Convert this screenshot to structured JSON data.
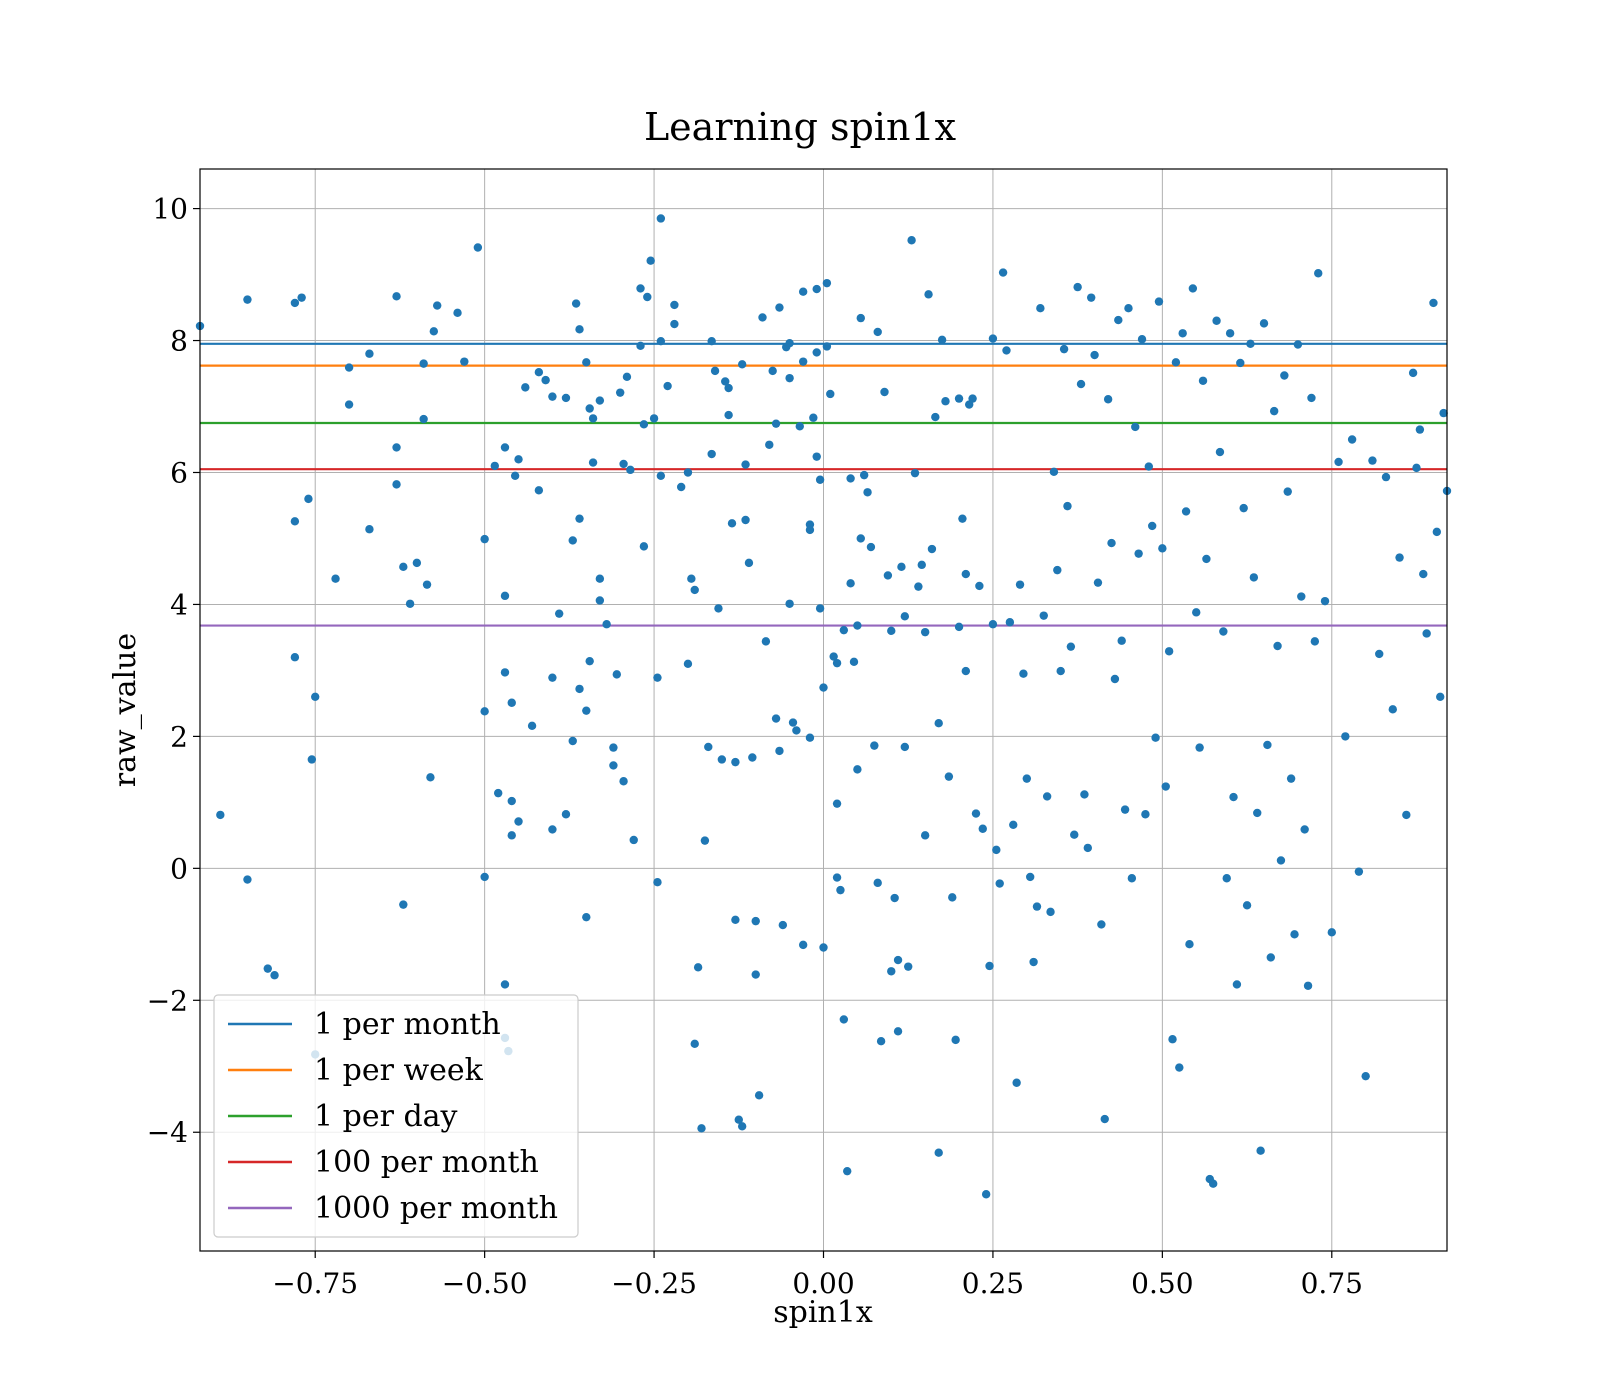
{
  "chart_data": {
    "type": "scatter",
    "title": "Learning spin1x",
    "xlabel": "spin1x",
    "ylabel": "raw_value",
    "xlim": [
      -0.92,
      0.92
    ],
    "ylim": [
      -5.8,
      10.6
    ],
    "xticks": [
      -0.75,
      -0.5,
      -0.25,
      0.0,
      0.25,
      0.5,
      0.75
    ],
    "xtick_labels": [
      "−0.75",
      "−0.50",
      "−0.25",
      "0.00",
      "0.25",
      "0.50",
      "0.75"
    ],
    "yticks": [
      -4,
      -2,
      0,
      2,
      4,
      6,
      8,
      10
    ],
    "ytick_labels": [
      "−4",
      "−2",
      "0",
      "2",
      "4",
      "6",
      "8",
      "10"
    ],
    "grid": true,
    "legend_position": "lower-left",
    "points_color": "#1f77b4",
    "hlines": [
      {
        "name": "1 per month",
        "y": 7.95,
        "color": "#1f77b4"
      },
      {
        "name": "1 per week",
        "y": 7.62,
        "color": "#ff7f0e"
      },
      {
        "name": "1 per day",
        "y": 6.75,
        "color": "#2ca02c"
      },
      {
        "name": "100 per month",
        "y": 6.05,
        "color": "#d62728"
      },
      {
        "name": "1000 per month",
        "y": 3.68,
        "color": "#9467bd"
      }
    ],
    "points": [
      [
        -0.92,
        8.22
      ],
      [
        -0.89,
        0.81
      ],
      [
        -0.85,
        8.62
      ],
      [
        -0.85,
        -0.17
      ],
      [
        -0.82,
        -1.52
      ],
      [
        -0.81,
        -1.62
      ],
      [
        -0.78,
        8.57
      ],
      [
        -0.77,
        8.65
      ],
      [
        -0.78,
        5.26
      ],
      [
        -0.78,
        3.2
      ],
      [
        -0.76,
        5.6
      ],
      [
        -0.75,
        2.6
      ],
      [
        -0.755,
        1.65
      ],
      [
        -0.75,
        -2.82
      ],
      [
        -0.72,
        4.39
      ],
      [
        -0.7,
        7.59
      ],
      [
        -0.7,
        7.03
      ],
      [
        -0.67,
        7.8
      ],
      [
        -0.67,
        5.14
      ],
      [
        -0.63,
        8.67
      ],
      [
        -0.63,
        6.38
      ],
      [
        -0.63,
        5.82
      ],
      [
        -0.62,
        4.57
      ],
      [
        -0.62,
        -0.55
      ],
      [
        -0.6,
        4.63
      ],
      [
        -0.61,
        4.01
      ],
      [
        -0.59,
        6.81
      ],
      [
        -0.59,
        7.65
      ],
      [
        -0.585,
        4.3
      ],
      [
        -0.58,
        1.38
      ],
      [
        -0.575,
        8.14
      ],
      [
        -0.57,
        8.53
      ],
      [
        -0.54,
        8.42
      ],
      [
        -0.53,
        7.68
      ],
      [
        -0.51,
        9.41
      ],
      [
        -0.5,
        4.99
      ],
      [
        -0.5,
        2.38
      ],
      [
        -0.5,
        -0.13
      ],
      [
        -0.485,
        6.1
      ],
      [
        -0.48,
        1.14
      ],
      [
        -0.47,
        6.38
      ],
      [
        -0.47,
        4.13
      ],
      [
        -0.47,
        2.97
      ],
      [
        -0.47,
        -1.76
      ],
      [
        -0.47,
        -2.57
      ],
      [
        -0.465,
        -2.77
      ],
      [
        -0.46,
        2.51
      ],
      [
        -0.46,
        1.02
      ],
      [
        -0.45,
        6.2
      ],
      [
        -0.455,
        5.95
      ],
      [
        -0.45,
        0.71
      ],
      [
        -0.46,
        0.5
      ],
      [
        -0.44,
        7.29
      ],
      [
        -0.43,
        2.16
      ],
      [
        -0.42,
        5.73
      ],
      [
        -0.42,
        7.52
      ],
      [
        -0.41,
        7.4
      ],
      [
        -0.4,
        7.15
      ],
      [
        -0.4,
        2.89
      ],
      [
        -0.4,
        0.59
      ],
      [
        -0.39,
        3.86
      ],
      [
        -0.38,
        0.82
      ],
      [
        -0.37,
        4.97
      ],
      [
        -0.38,
        7.13
      ],
      [
        -0.37,
        1.93
      ],
      [
        -0.365,
        8.56
      ],
      [
        -0.36,
        8.17
      ],
      [
        -0.36,
        5.3
      ],
      [
        -0.36,
        2.72
      ],
      [
        -0.35,
        7.67
      ],
      [
        -0.35,
        2.39
      ],
      [
        -0.35,
        -0.74
      ],
      [
        -0.345,
        6.97
      ],
      [
        -0.34,
        6.82
      ],
      [
        -0.345,
        3.14
      ],
      [
        -0.34,
        6.15
      ],
      [
        -0.33,
        7.09
      ],
      [
        -0.33,
        4.39
      ],
      [
        -0.33,
        4.06
      ],
      [
        -0.32,
        3.7
      ],
      [
        -0.31,
        1.83
      ],
      [
        -0.305,
        2.94
      ],
      [
        -0.31,
        1.56
      ],
      [
        -0.3,
        7.21
      ],
      [
        -0.295,
        6.13
      ],
      [
        -0.295,
        1.32
      ],
      [
        -0.29,
        7.45
      ],
      [
        -0.285,
        6.04
      ],
      [
        -0.28,
        0.43
      ],
      [
        -0.27,
        8.79
      ],
      [
        -0.27,
        7.92
      ],
      [
        -0.265,
        6.73
      ],
      [
        -0.265,
        4.88
      ],
      [
        -0.26,
        8.66
      ],
      [
        -0.255,
        9.21
      ],
      [
        -0.25,
        6.82
      ],
      [
        -0.245,
        2.89
      ],
      [
        -0.245,
        -0.21
      ],
      [
        -0.24,
        9.85
      ],
      [
        -0.24,
        7.99
      ],
      [
        -0.24,
        5.95
      ],
      [
        -0.23,
        7.31
      ],
      [
        -0.22,
        8.54
      ],
      [
        -0.22,
        8.25
      ],
      [
        -0.21,
        5.78
      ],
      [
        -0.2,
        6.0
      ],
      [
        -0.2,
        3.1
      ],
      [
        -0.195,
        4.39
      ],
      [
        -0.19,
        4.22
      ],
      [
        -0.19,
        -2.66
      ],
      [
        -0.185,
        -1.5
      ],
      [
        -0.18,
        -3.94
      ],
      [
        -0.175,
        0.42
      ],
      [
        -0.17,
        1.84
      ],
      [
        -0.165,
        6.28
      ],
      [
        -0.165,
        7.99
      ],
      [
        -0.16,
        7.54
      ],
      [
        -0.155,
        3.94
      ],
      [
        -0.15,
        1.65
      ],
      [
        -0.145,
        7.38
      ],
      [
        -0.14,
        7.28
      ],
      [
        -0.14,
        6.87
      ],
      [
        -0.135,
        5.23
      ],
      [
        -0.13,
        1.61
      ],
      [
        -0.13,
        -0.78
      ],
      [
        -0.125,
        -3.81
      ],
      [
        -0.12,
        -3.91
      ],
      [
        -0.12,
        7.64
      ],
      [
        -0.115,
        6.12
      ],
      [
        -0.115,
        5.28
      ],
      [
        -0.11,
        4.63
      ],
      [
        -0.105,
        1.68
      ],
      [
        -0.1,
        -0.8
      ],
      [
        -0.1,
        -1.61
      ],
      [
        -0.095,
        -3.44
      ],
      [
        -0.09,
        8.35
      ],
      [
        -0.085,
        3.44
      ],
      [
        -0.08,
        6.42
      ],
      [
        -0.075,
        7.54
      ],
      [
        -0.07,
        6.74
      ],
      [
        -0.07,
        2.27
      ],
      [
        -0.065,
        8.5
      ],
      [
        -0.065,
        1.78
      ],
      [
        -0.06,
        -0.86
      ],
      [
        -0.055,
        7.9
      ],
      [
        -0.05,
        7.96
      ],
      [
        -0.05,
        7.43
      ],
      [
        -0.05,
        4.01
      ],
      [
        -0.045,
        2.21
      ],
      [
        -0.04,
        2.09
      ],
      [
        -0.035,
        6.7
      ],
      [
        -0.03,
        8.74
      ],
      [
        -0.03,
        7.68
      ],
      [
        -0.03,
        -1.16
      ],
      [
        -0.02,
        5.21
      ],
      [
        -0.02,
        5.13
      ],
      [
        -0.02,
        1.98
      ],
      [
        -0.015,
        6.83
      ],
      [
        -0.01,
        8.78
      ],
      [
        -0.01,
        7.82
      ],
      [
        -0.01,
        6.24
      ],
      [
        -0.005,
        5.89
      ],
      [
        -0.005,
        3.94
      ],
      [
        0.0,
        2.74
      ],
      [
        0.0,
        -1.2
      ],
      [
        0.005,
        8.87
      ],
      [
        0.005,
        7.91
      ],
      [
        0.01,
        7.19
      ],
      [
        0.015,
        3.21
      ],
      [
        0.02,
        3.11
      ],
      [
        0.02,
        0.98
      ],
      [
        0.02,
        -0.14
      ],
      [
        0.025,
        -0.33
      ],
      [
        0.03,
        -2.29
      ],
      [
        0.035,
        -4.59
      ],
      [
        0.04,
        5.91
      ],
      [
        0.04,
        4.32
      ],
      [
        0.045,
        3.13
      ],
      [
        0.05,
        1.5
      ],
      [
        0.055,
        5.0
      ],
      [
        0.055,
        8.34
      ],
      [
        0.06,
        5.96
      ],
      [
        0.065,
        5.7
      ],
      [
        0.07,
        4.87
      ],
      [
        0.075,
        1.86
      ],
      [
        0.08,
        8.13
      ],
      [
        0.08,
        -0.22
      ],
      [
        0.085,
        -2.62
      ],
      [
        0.09,
        7.22
      ],
      [
        0.095,
        4.44
      ],
      [
        0.1,
        -1.56
      ],
      [
        0.105,
        -0.45
      ],
      [
        0.11,
        -2.47
      ],
      [
        0.11,
        -1.39
      ],
      [
        0.115,
        4.57
      ],
      [
        0.12,
        3.82
      ],
      [
        0.12,
        1.84
      ],
      [
        0.125,
        -1.49
      ],
      [
        0.13,
        9.52
      ],
      [
        0.135,
        5.99
      ],
      [
        0.14,
        4.27
      ],
      [
        0.145,
        4.6
      ],
      [
        0.15,
        0.5
      ],
      [
        0.155,
        8.7
      ],
      [
        0.16,
        4.84
      ],
      [
        0.165,
        6.84
      ],
      [
        0.17,
        2.2
      ],
      [
        0.17,
        -4.31
      ],
      [
        0.175,
        8.01
      ],
      [
        0.18,
        7.08
      ],
      [
        0.185,
        1.39
      ],
      [
        0.19,
        -0.44
      ],
      [
        0.195,
        -2.6
      ],
      [
        0.2,
        7.12
      ],
      [
        0.205,
        5.3
      ],
      [
        0.21,
        4.46
      ],
      [
        0.21,
        2.99
      ],
      [
        0.215,
        7.03
      ],
      [
        0.22,
        7.12
      ],
      [
        0.225,
        0.83
      ],
      [
        0.23,
        4.28
      ],
      [
        0.235,
        0.6
      ],
      [
        0.24,
        -4.94
      ],
      [
        0.245,
        -1.48
      ],
      [
        0.25,
        8.03
      ],
      [
        0.255,
        0.28
      ],
      [
        0.26,
        -0.23
      ],
      [
        0.265,
        9.03
      ],
      [
        0.27,
        7.85
      ],
      [
        0.275,
        3.73
      ],
      [
        0.28,
        0.66
      ],
      [
        0.285,
        -3.25
      ],
      [
        0.29,
        4.3
      ],
      [
        0.295,
        2.95
      ],
      [
        0.3,
        1.36
      ],
      [
        0.305,
        -0.13
      ],
      [
        0.31,
        -1.42
      ],
      [
        0.315,
        -0.58
      ],
      [
        0.32,
        8.49
      ],
      [
        0.325,
        3.83
      ],
      [
        0.33,
        1.09
      ],
      [
        0.335,
        -0.66
      ],
      [
        0.34,
        6.01
      ],
      [
        0.345,
        4.52
      ],
      [
        0.35,
        2.99
      ],
      [
        0.355,
        7.87
      ],
      [
        0.36,
        5.49
      ],
      [
        0.365,
        3.36
      ],
      [
        0.37,
        0.51
      ],
      [
        0.375,
        8.81
      ],
      [
        0.38,
        7.34
      ],
      [
        0.385,
        1.12
      ],
      [
        0.39,
        0.31
      ],
      [
        0.395,
        8.65
      ],
      [
        0.4,
        7.78
      ],
      [
        0.405,
        4.33
      ],
      [
        0.41,
        -0.85
      ],
      [
        0.415,
        -3.8
      ],
      [
        0.42,
        7.11
      ],
      [
        0.425,
        4.93
      ],
      [
        0.43,
        2.87
      ],
      [
        0.435,
        8.31
      ],
      [
        0.44,
        3.45
      ],
      [
        0.445,
        0.89
      ],
      [
        0.45,
        8.49
      ],
      [
        0.455,
        -0.15
      ],
      [
        0.46,
        6.69
      ],
      [
        0.465,
        4.77
      ],
      [
        0.47,
        8.02
      ],
      [
        0.475,
        0.82
      ],
      [
        0.48,
        6.09
      ],
      [
        0.485,
        5.19
      ],
      [
        0.49,
        1.98
      ],
      [
        0.495,
        8.59
      ],
      [
        0.5,
        4.85
      ],
      [
        0.505,
        1.24
      ],
      [
        0.51,
        3.29
      ],
      [
        0.515,
        -2.59
      ],
      [
        0.52,
        7.67
      ],
      [
        0.525,
        -3.02
      ],
      [
        0.53,
        8.11
      ],
      [
        0.535,
        5.41
      ],
      [
        0.54,
        -1.15
      ],
      [
        0.545,
        8.79
      ],
      [
        0.55,
        3.88
      ],
      [
        0.555,
        1.83
      ],
      [
        0.56,
        7.39
      ],
      [
        0.565,
        4.69
      ],
      [
        0.57,
        -4.71
      ],
      [
        0.575,
        -4.78
      ],
      [
        0.58,
        8.3
      ],
      [
        0.585,
        6.31
      ],
      [
        0.59,
        3.59
      ],
      [
        0.595,
        -0.15
      ],
      [
        0.6,
        8.11
      ],
      [
        0.605,
        1.08
      ],
      [
        0.61,
        -1.76
      ],
      [
        0.615,
        7.66
      ],
      [
        0.62,
        5.46
      ],
      [
        0.625,
        -0.56
      ],
      [
        0.63,
        7.95
      ],
      [
        0.635,
        4.41
      ],
      [
        0.64,
        0.84
      ],
      [
        0.645,
        -4.28
      ],
      [
        0.65,
        8.26
      ],
      [
        0.655,
        1.87
      ],
      [
        0.66,
        -1.35
      ],
      [
        0.665,
        6.93
      ],
      [
        0.67,
        3.37
      ],
      [
        0.675,
        0.12
      ],
      [
        0.68,
        7.47
      ],
      [
        0.685,
        5.71
      ],
      [
        0.69,
        1.36
      ],
      [
        0.695,
        -1.0
      ],
      [
        0.7,
        7.94
      ],
      [
        0.705,
        4.12
      ],
      [
        0.71,
        0.59
      ],
      [
        0.715,
        -1.78
      ],
      [
        0.72,
        7.13
      ],
      [
        0.725,
        3.44
      ],
      [
        0.73,
        9.02
      ],
      [
        0.74,
        4.05
      ],
      [
        0.75,
        -0.97
      ],
      [
        0.76,
        6.16
      ],
      [
        0.77,
        2.0
      ],
      [
        0.78,
        6.5
      ],
      [
        0.79,
        -0.05
      ],
      [
        0.8,
        -3.15
      ],
      [
        0.81,
        6.18
      ],
      [
        0.82,
        3.25
      ],
      [
        0.83,
        5.93
      ],
      [
        0.84,
        2.41
      ],
      [
        0.85,
        4.71
      ],
      [
        0.86,
        0.81
      ],
      [
        0.87,
        7.51
      ],
      [
        0.875,
        6.07
      ],
      [
        0.88,
        6.65
      ],
      [
        0.885,
        4.46
      ],
      [
        0.89,
        3.56
      ],
      [
        0.9,
        8.57
      ],
      [
        0.905,
        5.1
      ],
      [
        0.91,
        2.6
      ],
      [
        0.915,
        6.9
      ],
      [
        0.92,
        5.72
      ],
      [
        0.03,
        3.61
      ],
      [
        0.05,
        3.68
      ],
      [
        0.1,
        3.6
      ],
      [
        0.15,
        3.58
      ],
      [
        0.2,
        3.66
      ],
      [
        0.25,
        3.7
      ]
    ]
  }
}
